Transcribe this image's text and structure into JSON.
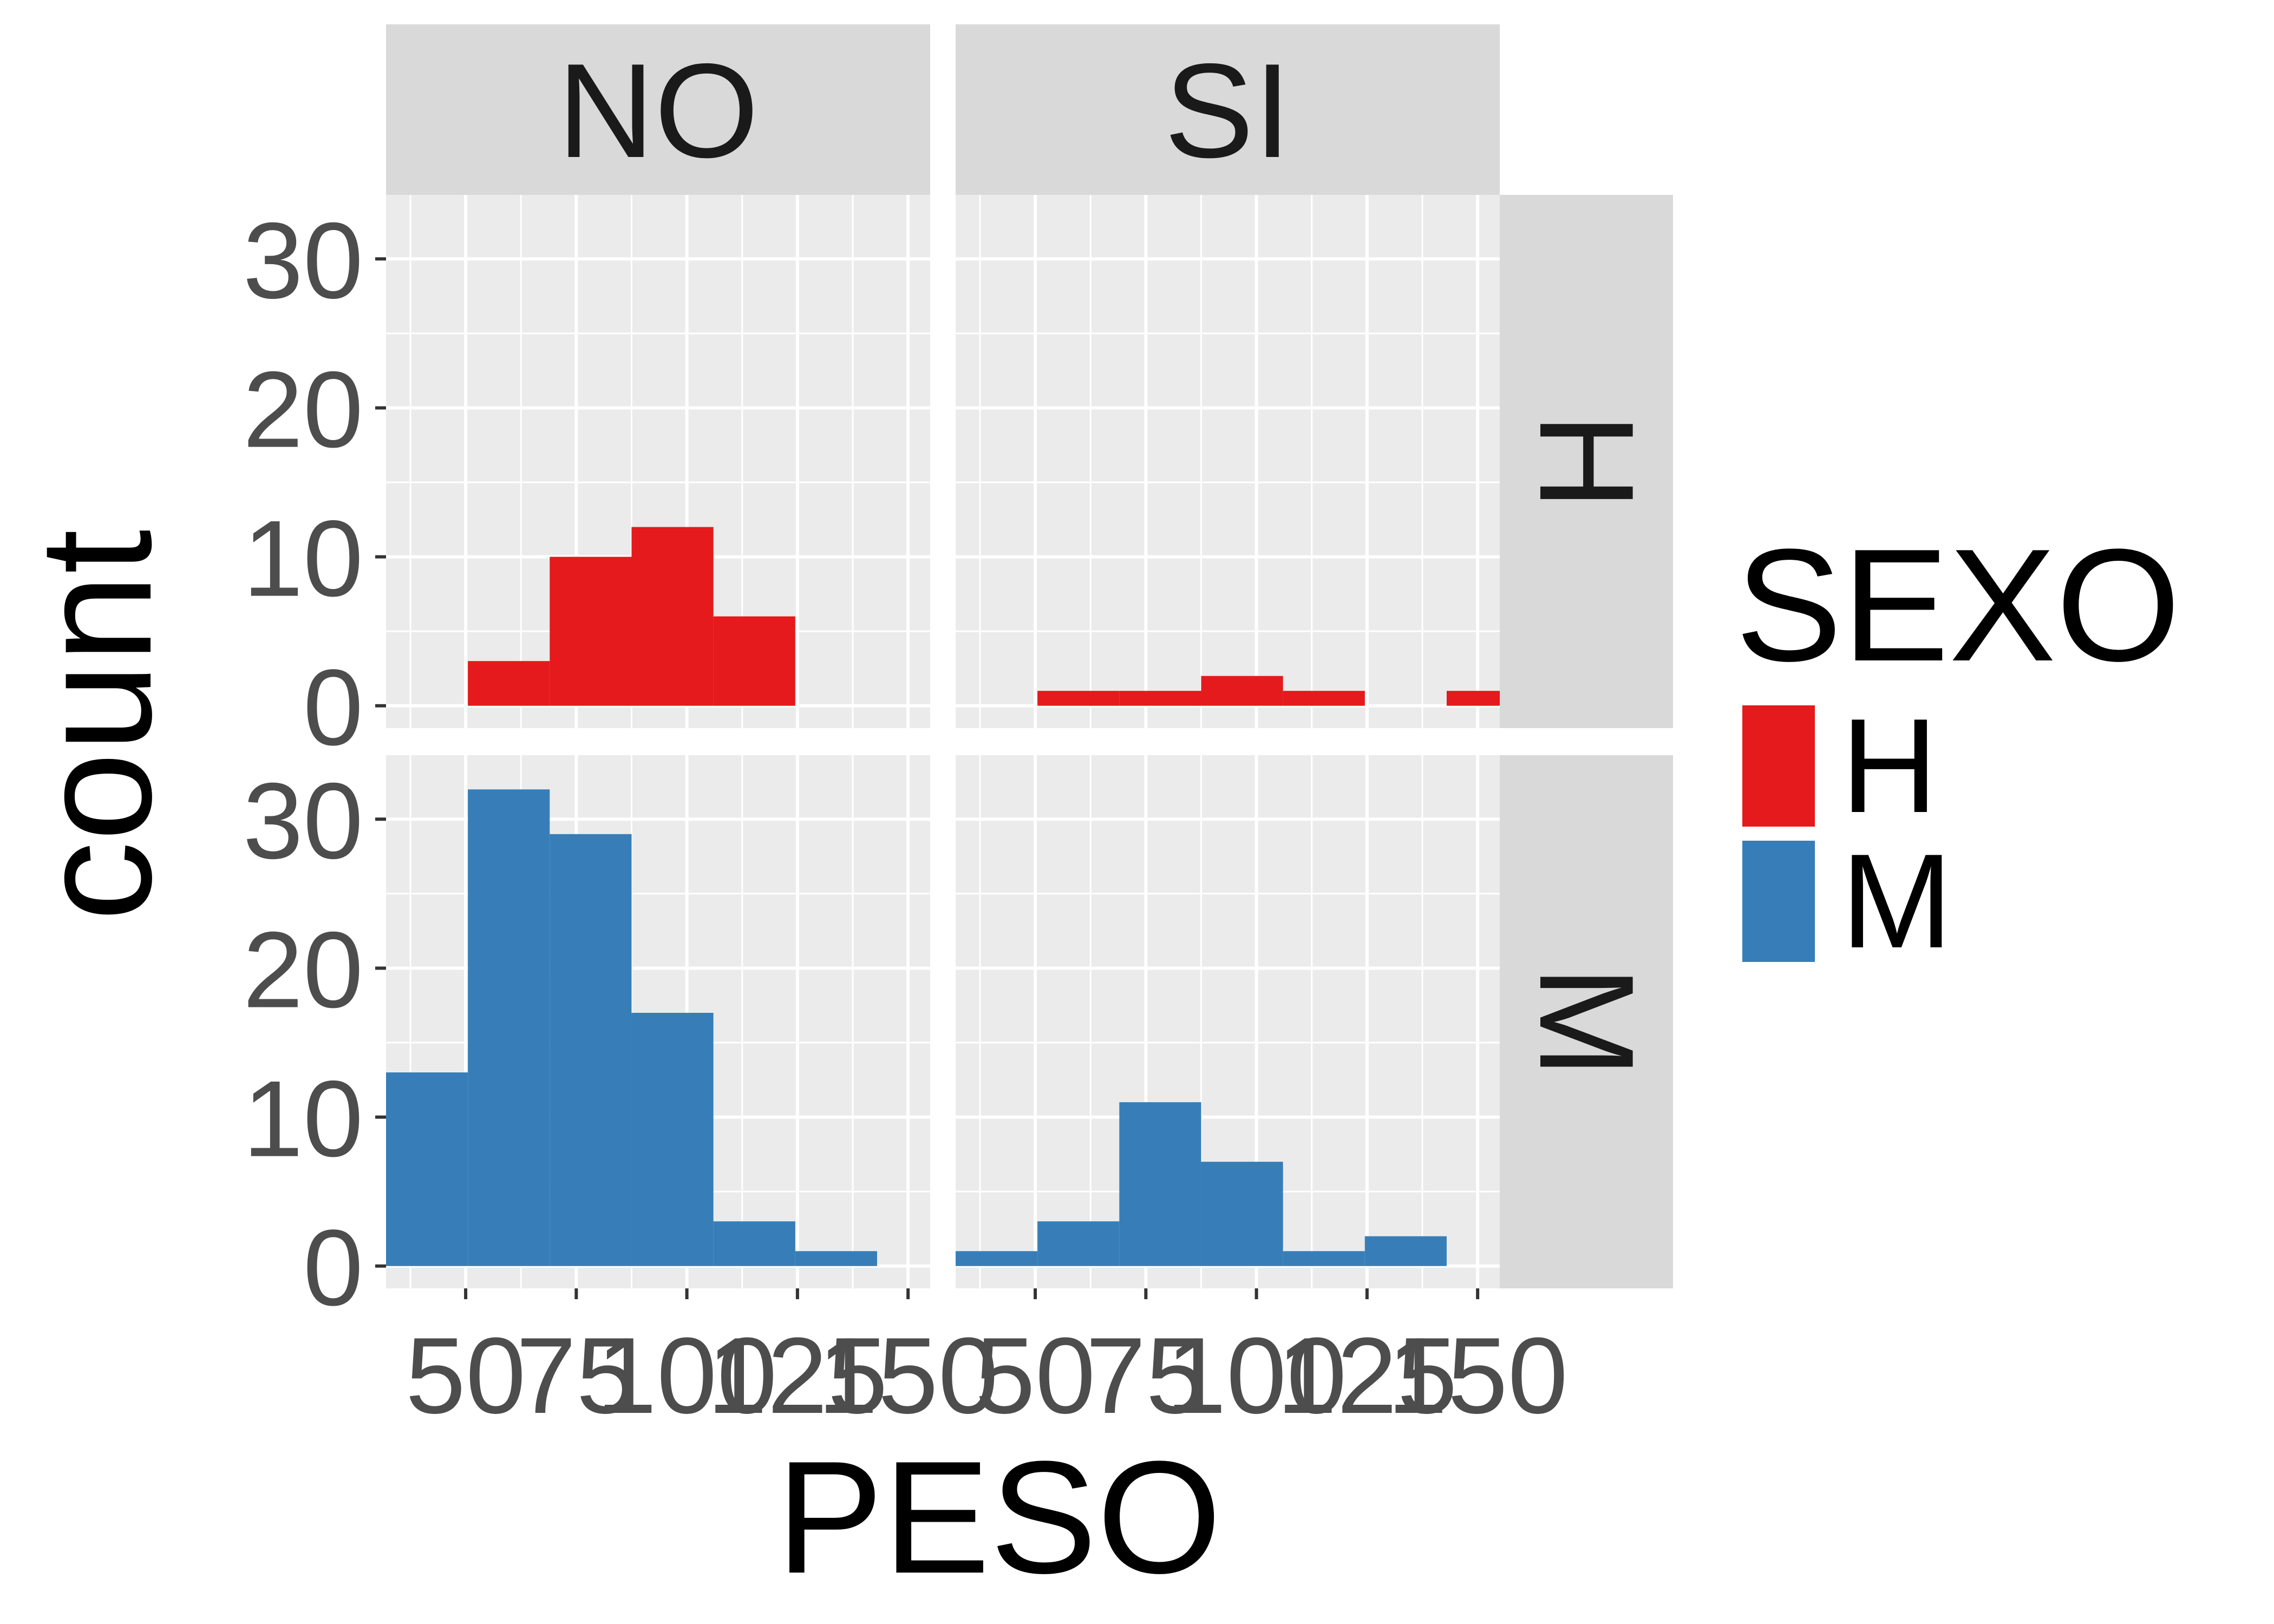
{
  "chart_data": {
    "type": "bar",
    "subtype": "faceted histogram",
    "facet_cols": [
      "NO",
      "SI"
    ],
    "facet_rows": [
      "H",
      "M"
    ],
    "xlabel": "PESO",
    "ylabel": "count",
    "x_ticks": [
      "50",
      "75",
      "100",
      "125",
      "150"
    ],
    "xlim": [
      32,
      155
    ],
    "y_ticks": [
      "0",
      "10",
      "20",
      "30"
    ],
    "ylim": [
      -1.5,
      34.3
    ],
    "bin_width": 18.5,
    "grid": true,
    "legend": {
      "title": "SEXO",
      "position": "right",
      "entries": [
        {
          "label": "H",
          "color": "#E41A1C"
        },
        {
          "label": "M",
          "color": "#377EB8"
        }
      ]
    },
    "panels": [
      {
        "col": "NO",
        "row": "H",
        "color": "#E41A1C",
        "bins": [
          {
            "x0": 50.5,
            "count": 3
          },
          {
            "x0": 69,
            "count": 10
          },
          {
            "x0": 87.5,
            "count": 12
          },
          {
            "x0": 106,
            "count": 6
          }
        ]
      },
      {
        "col": "SI",
        "row": "H",
        "color": "#E41A1C",
        "bins": [
          {
            "x0": 50.5,
            "count": 1
          },
          {
            "x0": 69,
            "count": 1
          },
          {
            "x0": 87.5,
            "count": 2
          },
          {
            "x0": 106,
            "count": 1
          },
          {
            "x0": 143,
            "count": 1
          }
        ]
      },
      {
        "col": "NO",
        "row": "M",
        "color": "#377EB8",
        "bins": [
          {
            "x0": 32,
            "count": 13
          },
          {
            "x0": 50.5,
            "count": 32
          },
          {
            "x0": 69,
            "count": 29
          },
          {
            "x0": 87.5,
            "count": 17
          },
          {
            "x0": 106,
            "count": 3
          },
          {
            "x0": 124.5,
            "count": 1
          }
        ]
      },
      {
        "col": "SI",
        "row": "M",
        "color": "#377EB8",
        "bins": [
          {
            "x0": 32,
            "count": 1
          },
          {
            "x0": 50.5,
            "count": 3
          },
          {
            "x0": 69,
            "count": 11
          },
          {
            "x0": 87.5,
            "count": 7
          },
          {
            "x0": 106,
            "count": 1
          },
          {
            "x0": 124.5,
            "count": 2
          }
        ]
      }
    ]
  },
  "colors": {
    "panel_background": "#EBEBEB",
    "strip_background": "#D9D9D9",
    "grid": "#FFFFFF"
  }
}
